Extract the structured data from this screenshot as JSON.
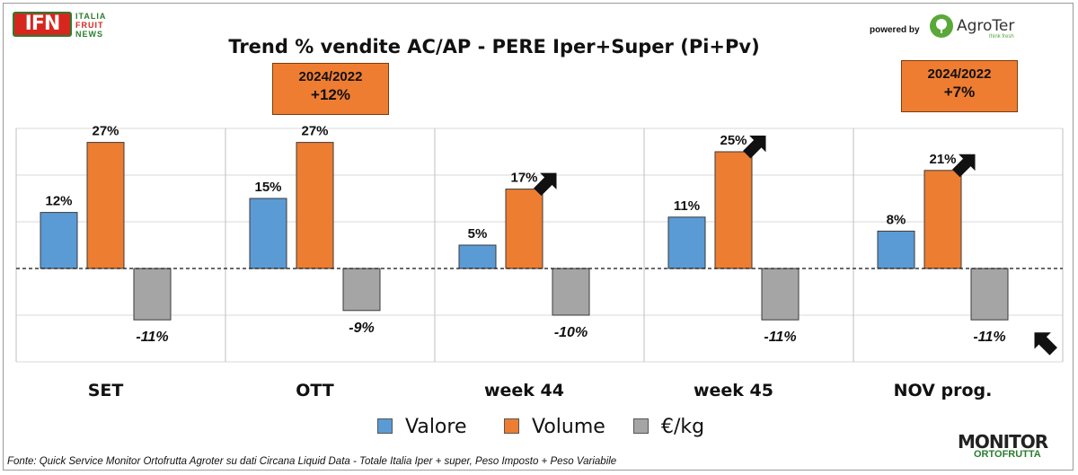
{
  "logo": {
    "mark": "IFN",
    "line1": "ITALIA",
    "line2": "FRUIT",
    "line3": "NEWS"
  },
  "sponsor": {
    "powered_by": "powered by",
    "brand": "AgroTer",
    "tagline": "think fresh"
  },
  "callouts": [
    {
      "group": "OTT",
      "period": "2024/2022",
      "value": "+12%"
    },
    {
      "group": "NOV prog.",
      "period": "2024/2022",
      "value": "+7%"
    }
  ],
  "source": "Fonte: Quick Service Monitor Ortofrutta Agroter su dati Circana Liquid Data - Totale Italia Iper + super, Peso Imposto + Peso Variabile",
  "footer_logo": {
    "main": "MONITOR",
    "sub": "ORTOFRUTTA"
  },
  "chart_data": {
    "type": "bar",
    "title": "Trend % vendite AC/AP - PERE  Iper+Super (Pi+Pv)",
    "categories": [
      "SET",
      "OTT",
      "week 44",
      "week 45",
      "NOV prog."
    ],
    "series": [
      {
        "name": "Valore",
        "color": "#5b9bd5",
        "values": [
          12,
          15,
          5,
          11,
          8
        ]
      },
      {
        "name": "Volume",
        "color": "#ed7d31",
        "values": [
          27,
          27,
          17,
          25,
          21
        ]
      },
      {
        "name": "€/kg",
        "color": "#a5a5a5",
        "values": [
          -11,
          -9,
          -10,
          -11,
          -11
        ]
      }
    ],
    "value_suffix": "%",
    "ylim": [
      -20,
      30
    ],
    "grid": true,
    "legend": "bottom",
    "annotations": [
      {
        "type": "arrow",
        "category": "week 44",
        "series": "Volume"
      },
      {
        "type": "arrow",
        "category": "week 45",
        "series": "Volume"
      },
      {
        "type": "arrow",
        "category": "NOV prog.",
        "series": "Volume"
      },
      {
        "type": "arrow",
        "category": "NOV prog.",
        "series": "€/kg"
      }
    ]
  }
}
